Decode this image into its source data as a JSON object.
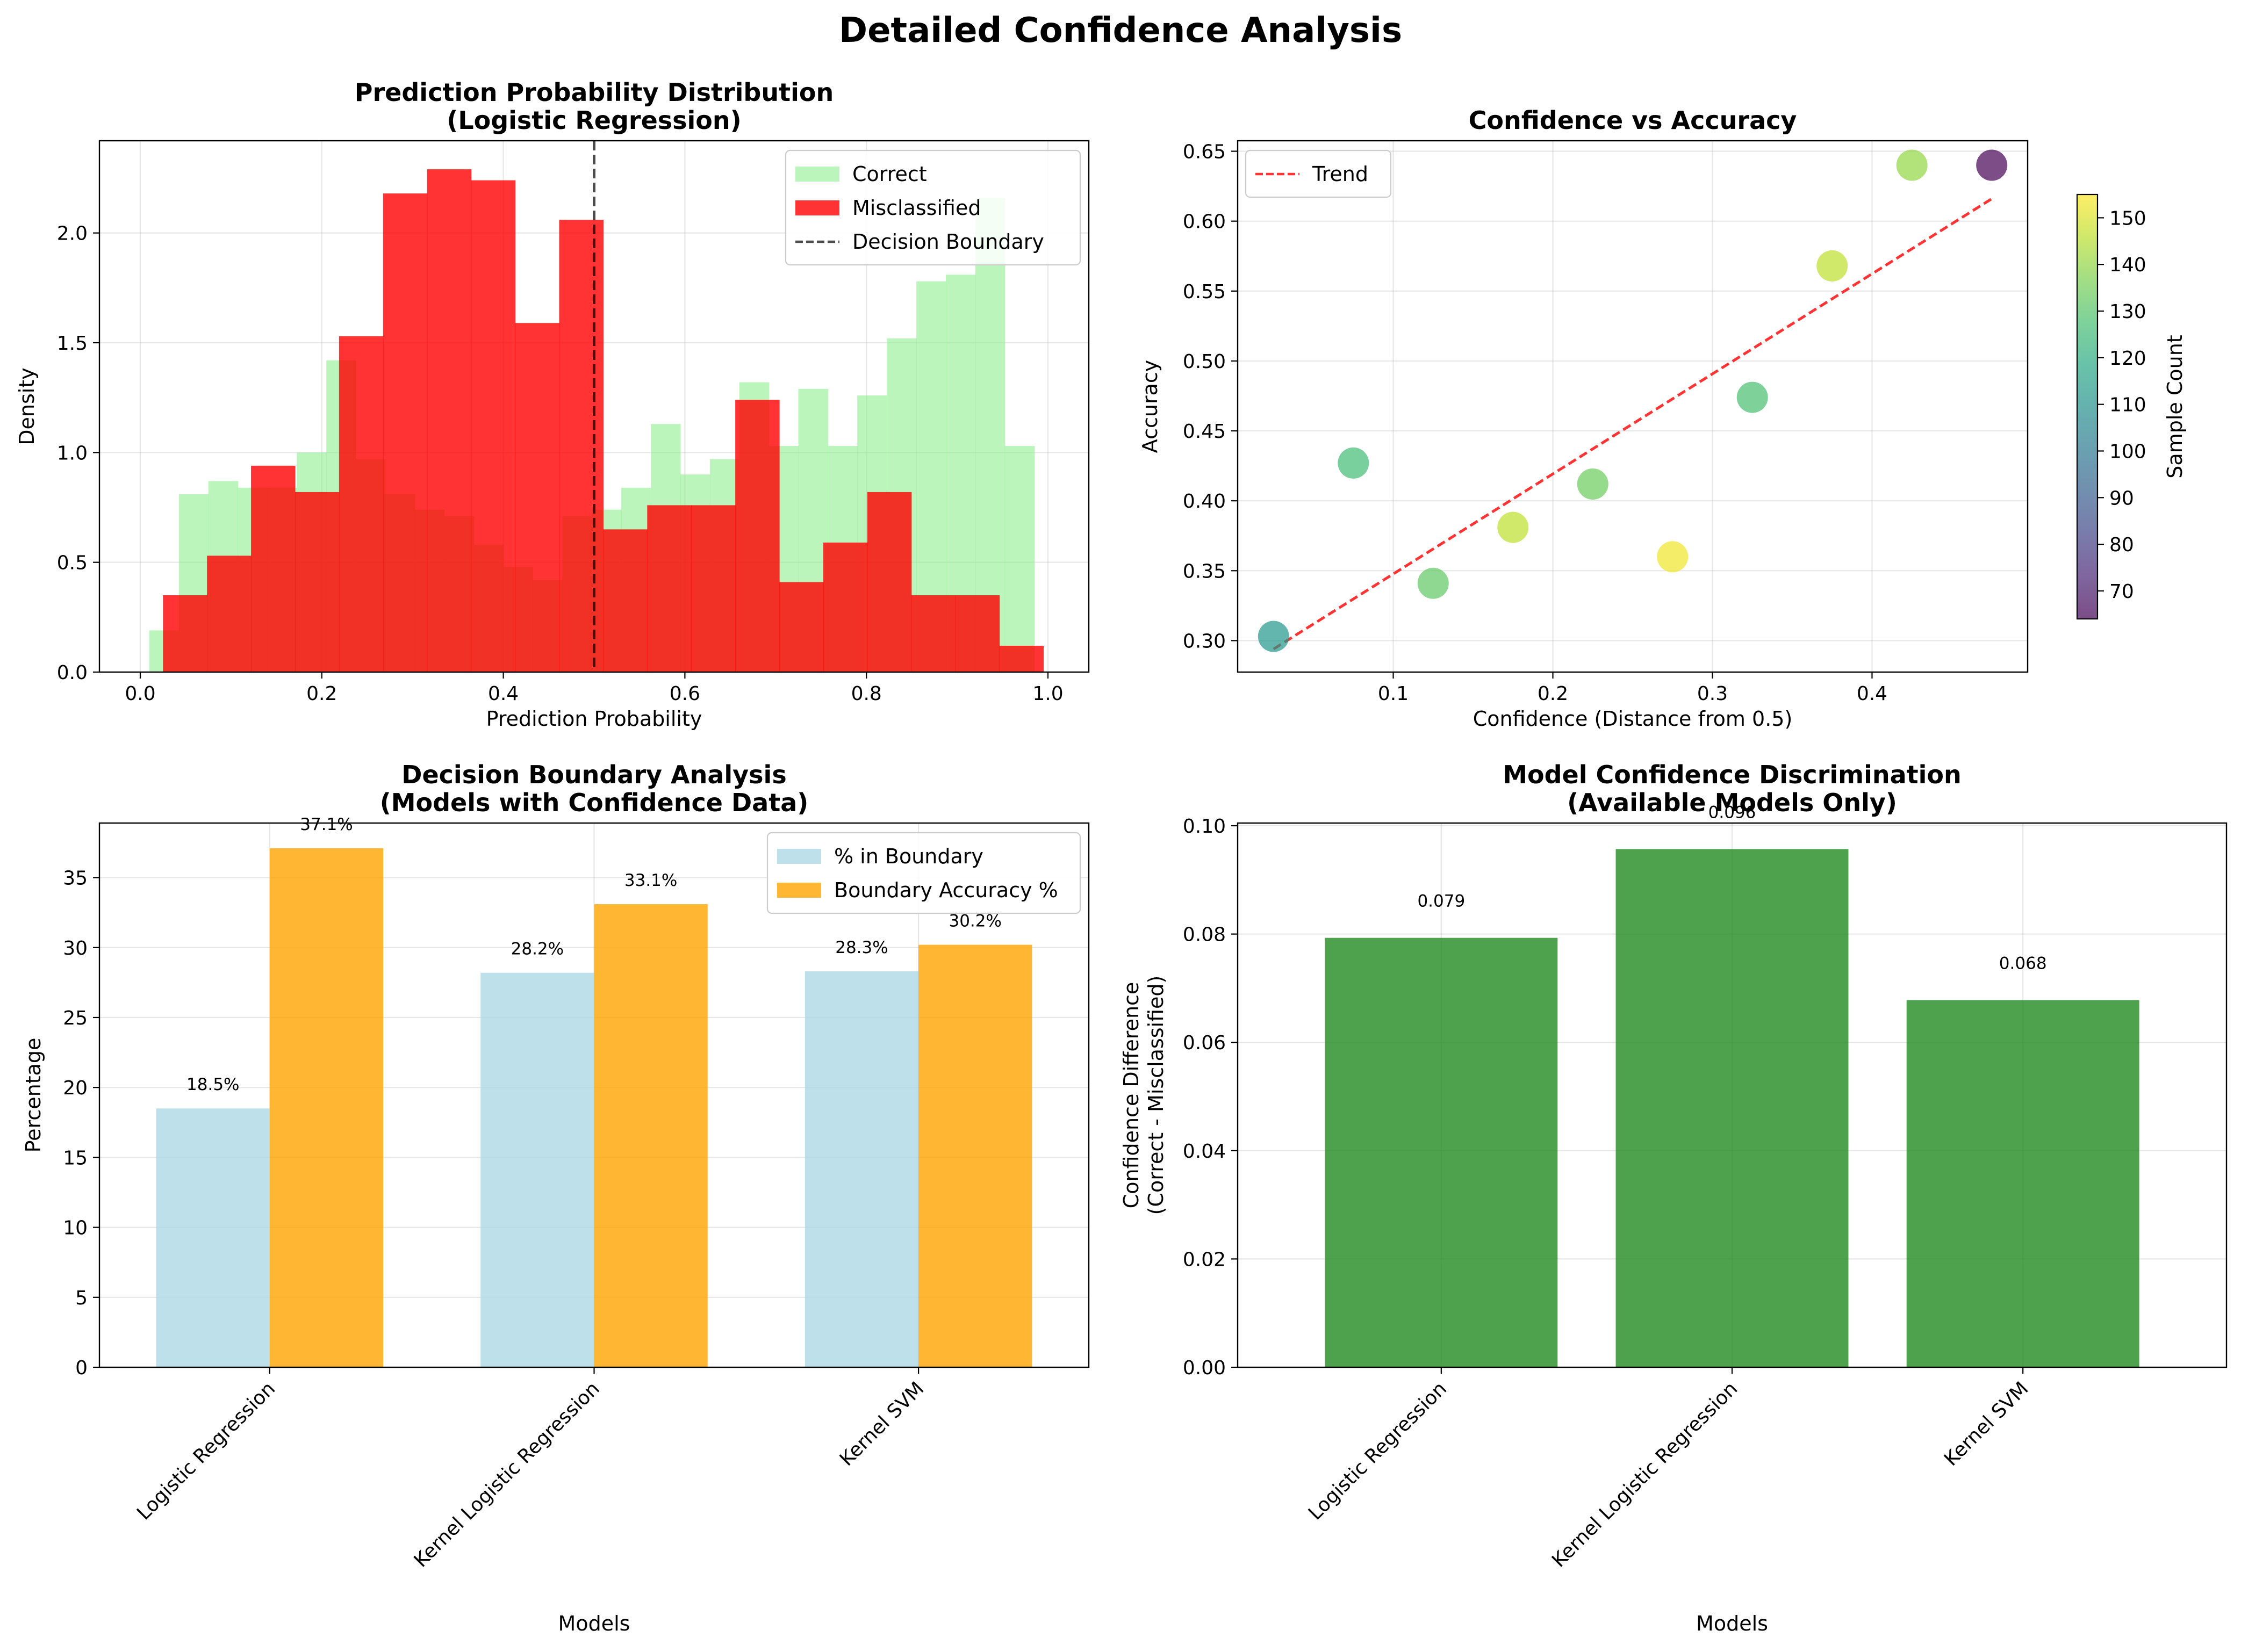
{
  "suptitle": "Detailed Confidence Analysis",
  "chart_data": [
    {
      "id": "hist",
      "type": "histogram",
      "title": [
        "Prediction Probability Distribution",
        "(Logistic Regression)"
      ],
      "xlabel": "Prediction Probability",
      "ylabel": "Density",
      "xlim": [
        -0.045,
        1.045
      ],
      "ylim": [
        0,
        2.42
      ],
      "xticks": [
        0.0,
        0.2,
        0.4,
        0.6,
        0.8,
        1.0
      ],
      "xtick_labels": [
        "0.0",
        "0.2",
        "0.4",
        "0.6",
        "0.8",
        "1.0"
      ],
      "yticks": [
        0.0,
        0.5,
        1.0,
        1.5,
        2.0
      ],
      "ytick_labels": [
        "0.0",
        "0.5",
        "1.0",
        "1.5",
        "2.0"
      ],
      "grid": true,
      "decision_boundary": 0.5,
      "series": [
        {
          "name": "Correct",
          "color": "#90ee90",
          "alpha": 0.6,
          "range": [
            0.01,
            0.985
          ],
          "values": [
            0.19,
            0.81,
            0.87,
            0.84,
            0.84,
            1.0,
            1.42,
            0.97,
            0.81,
            0.74,
            0.71,
            0.58,
            0.48,
            0.42,
            0.71,
            0.74,
            0.84,
            1.13,
            0.9,
            0.97,
            1.32,
            1.03,
            1.29,
            1.03,
            1.26,
            1.52,
            1.78,
            1.81,
            2.16,
            1.03
          ]
        },
        {
          "name": "Misclassified",
          "color": "#ff0000",
          "alpha": 0.8,
          "range": [
            0.025,
            0.995
          ],
          "values": [
            0.35,
            0.53,
            0.94,
            0.82,
            1.53,
            2.18,
            2.29,
            2.24,
            1.59,
            2.06,
            0.65,
            0.76,
            0.76,
            1.24,
            0.41,
            0.59,
            0.82,
            0.35,
            0.35,
            0.12
          ]
        }
      ],
      "legend": [
        "Correct",
        "Misclassified",
        "Decision Boundary"
      ],
      "legend_loc": "upper right"
    },
    {
      "id": "scatter",
      "type": "scatter",
      "title": [
        "Confidence vs Accuracy"
      ],
      "xlabel": "Confidence (Distance from 0.5)",
      "ylabel": "Accuracy",
      "xlim": [
        0.0025,
        0.4975
      ],
      "ylim": [
        0.2775,
        0.6575
      ],
      "xticks": [
        0.1,
        0.2,
        0.3,
        0.4
      ],
      "xtick_labels": [
        "0.1",
        "0.2",
        "0.3",
        "0.4"
      ],
      "yticks": [
        0.3,
        0.35,
        0.4,
        0.45,
        0.5,
        0.55,
        0.6,
        0.65
      ],
      "ytick_labels": [
        "0.30",
        "0.35",
        "0.40",
        "0.45",
        "0.50",
        "0.55",
        "0.60",
        "0.65"
      ],
      "grid": true,
      "points": [
        {
          "x": 0.025,
          "y": 0.303,
          "c": 112
        },
        {
          "x": 0.075,
          "y": 0.427,
          "c": 127
        },
        {
          "x": 0.125,
          "y": 0.341,
          "c": 132
        },
        {
          "x": 0.175,
          "y": 0.381,
          "c": 146
        },
        {
          "x": 0.225,
          "y": 0.412,
          "c": 134
        },
        {
          "x": 0.275,
          "y": 0.36,
          "c": 153
        },
        {
          "x": 0.325,
          "y": 0.474,
          "c": 128
        },
        {
          "x": 0.375,
          "y": 0.568,
          "c": 146
        },
        {
          "x": 0.425,
          "y": 0.64,
          "c": 140
        },
        {
          "x": 0.475,
          "y": 0.64,
          "c": 64
        }
      ],
      "trend": {
        "x": [
          0.025,
          0.475
        ],
        "y": [
          0.294,
          0.616
        ],
        "label": "Trend",
        "color": "#ff0000"
      },
      "colorbar": {
        "label": "Sample Count",
        "range": [
          64,
          155
        ],
        "ticks": [
          70,
          80,
          90,
          100,
          110,
          120,
          130,
          140,
          150
        ],
        "tick_labels": [
          "70",
          "80",
          "90",
          "100",
          "110",
          "120",
          "130",
          "140",
          "150"
        ]
      },
      "legend": [
        "Trend"
      ],
      "legend_loc": "upper left"
    },
    {
      "id": "grouped",
      "type": "bar",
      "title": [
        "Decision Boundary Analysis",
        "(Models with Confidence Data)"
      ],
      "xlabel": "Models",
      "ylabel": "Percentage",
      "categories": [
        "Logistic Regression",
        "Kernel Logistic Regression",
        "Kernel SVM"
      ],
      "ylim": [
        0,
        38.9
      ],
      "yticks": [
        0,
        5,
        10,
        15,
        20,
        25,
        30,
        35
      ],
      "ytick_labels": [
        "0",
        "5",
        "10",
        "15",
        "20",
        "25",
        "30",
        "35"
      ],
      "grid": true,
      "series": [
        {
          "name": "% in Boundary",
          "color": "#add8e6",
          "values": [
            18.5,
            28.2,
            28.3
          ],
          "labels": [
            "18.5%",
            "28.2%",
            "28.3%"
          ]
        },
        {
          "name": "Boundary Accuracy %",
          "color": "#ffa500",
          "values": [
            37.1,
            33.1,
            30.2
          ],
          "labels": [
            "37.1%",
            "33.1%",
            "30.2%"
          ]
        }
      ],
      "legend": [
        "% in Boundary",
        "Boundary Accuracy %"
      ],
      "legend_loc": "upper right"
    },
    {
      "id": "discrim",
      "type": "bar",
      "title": [
        "Model Confidence Discrimination",
        "(Available Models Only)"
      ],
      "xlabel": "Models",
      "ylabel": [
        "Confidence Difference",
        "(Correct - Misclassified)"
      ],
      "categories": [
        "Logistic Regression",
        "Kernel Logistic Regression",
        "Kernel SVM"
      ],
      "ylim": [
        0,
        0.1005
      ],
      "yticks": [
        0.0,
        0.02,
        0.04,
        0.06,
        0.08,
        0.1
      ],
      "ytick_labels": [
        "0.00",
        "0.02",
        "0.04",
        "0.06",
        "0.08",
        "0.10"
      ],
      "grid": true,
      "color": "#228b22",
      "values": [
        0.0793,
        0.0957,
        0.0678
      ],
      "labels": [
        "0.079",
        "0.096",
        "0.068"
      ]
    }
  ]
}
